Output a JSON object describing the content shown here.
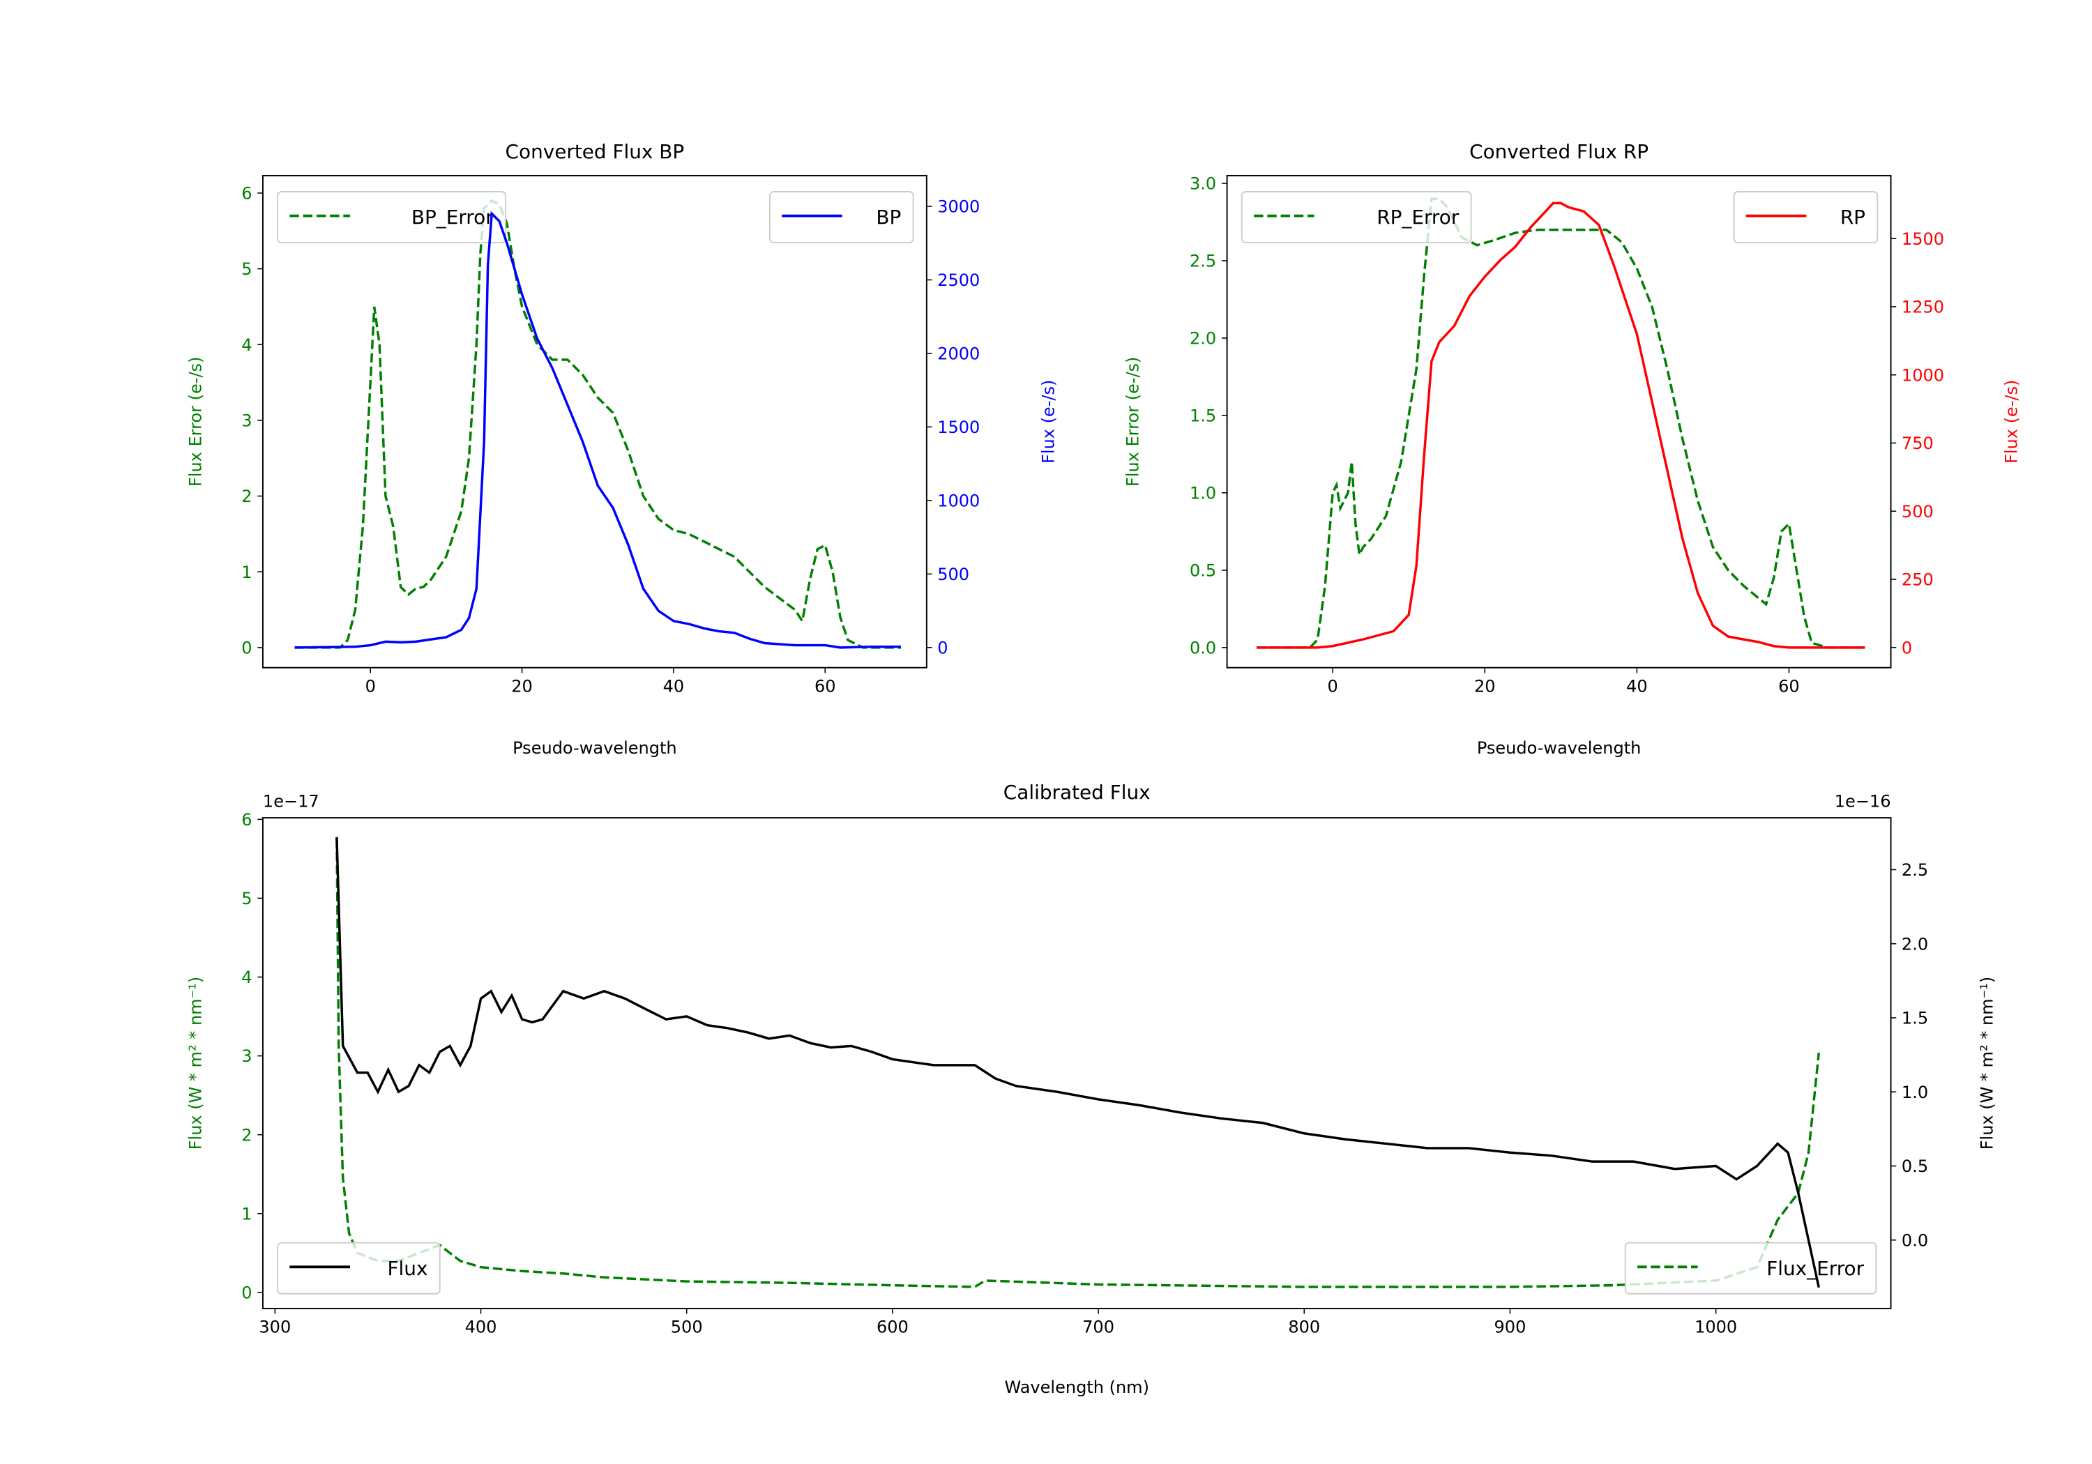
{
  "colors": {
    "green": "#008000",
    "blue": "#0000ff",
    "red": "#ff0000",
    "black": "#000000"
  },
  "chart_data": [
    {
      "id": "bp",
      "type": "line",
      "title": "Converted Flux BP",
      "xlabel": "Pseudo-wavelength",
      "ylabel_left": "Flux Error (e-/s)",
      "ylabel_right": "Flux (e-/s)",
      "xlim": [
        -14.2,
        73.4
      ],
      "ylim_left": [
        -0.265,
        6.23
      ],
      "ylim_right": [
        -137,
        3209
      ],
      "xticks": [
        0,
        20,
        40,
        60
      ],
      "yticks_left": [
        0,
        1,
        2,
        3,
        4,
        5,
        6
      ],
      "yticks_right": [
        0,
        500,
        1000,
        1500,
        2000,
        2500,
        3000
      ],
      "left_color": "#008000",
      "right_color": "#0000ff",
      "legend_left": {
        "label": "BP_Error",
        "placement": "upper-left"
      },
      "legend_right": {
        "label": "BP",
        "placement": "upper-right"
      },
      "series_left": {
        "name": "BP_Error",
        "style": "dashed",
        "x": [
          -10,
          -4,
          -3,
          -2,
          -1,
          0,
          0.5,
          1.2,
          2,
          3,
          4,
          5,
          6,
          7,
          8,
          10,
          12,
          13,
          14,
          14.5,
          15,
          16,
          17,
          18,
          19,
          20,
          22,
          24,
          26,
          28,
          30,
          32,
          34,
          36,
          38,
          40,
          42,
          44,
          46,
          48,
          50,
          52,
          54,
          56,
          57,
          58,
          59,
          60,
          61,
          62,
          63,
          65,
          70
        ],
        "y": [
          0,
          0,
          0.1,
          0.5,
          1.6,
          3.5,
          4.5,
          4.0,
          2.0,
          1.6,
          0.8,
          0.7,
          0.78,
          0.8,
          0.9,
          1.2,
          1.8,
          2.5,
          4,
          5.2,
          5.8,
          5.9,
          5.85,
          5.6,
          5.0,
          4.5,
          4.0,
          3.8,
          3.8,
          3.6,
          3.3,
          3.1,
          2.6,
          2.0,
          1.7,
          1.55,
          1.5,
          1.4,
          1.3,
          1.2,
          1.0,
          0.8,
          0.65,
          0.5,
          0.35,
          0.9,
          1.3,
          1.35,
          1.0,
          0.4,
          0.1,
          0,
          0
        ]
      },
      "series_right": {
        "name": "BP",
        "style": "solid",
        "x": [
          -10,
          -2,
          0,
          2,
          4,
          6,
          8,
          10,
          12,
          13,
          14,
          15,
          15.5,
          16,
          17,
          18,
          20,
          22,
          24,
          26,
          28,
          30,
          32,
          34,
          36,
          38,
          40,
          42,
          44,
          46,
          48,
          50,
          52,
          56,
          60,
          62,
          66,
          70
        ],
        "y": [
          0,
          5,
          15,
          40,
          35,
          40,
          55,
          70,
          120,
          200,
          400,
          1400,
          2600,
          2950,
          2900,
          2750,
          2400,
          2100,
          1900,
          1650,
          1400,
          1100,
          950,
          700,
          400,
          250,
          180,
          160,
          130,
          110,
          100,
          60,
          30,
          15,
          15,
          0,
          5,
          5
        ]
      }
    },
    {
      "id": "rp",
      "type": "line",
      "title": "Converted Flux RP",
      "xlabel": "Pseudo-wavelength",
      "ylabel_left": "Flux Error (e-/s)",
      "ylabel_right": "Flux (e-/s)",
      "xlim": [
        -13.9,
        73.4
      ],
      "ylim_left": [
        -0.13,
        3.05
      ],
      "ylim_right": [
        -74,
        1731
      ],
      "xticks": [
        0,
        20,
        40,
        60
      ],
      "yticks_left": [
        "0.0",
        "0.5",
        "1.0",
        "1.5",
        "2.0",
        "2.5",
        "3.0"
      ],
      "yticks_right": [
        0,
        250,
        500,
        750,
        1000,
        1250,
        1500
      ],
      "left_color": "#008000",
      "right_color": "#ff0000",
      "legend_left": {
        "label": "RP_Error",
        "placement": "upper-left"
      },
      "legend_right": {
        "label": "RP",
        "placement": "upper-right"
      },
      "series_left": {
        "name": "RP_Error",
        "style": "dashed",
        "x": [
          -10,
          -3,
          -2,
          -1,
          0,
          0.5,
          1,
          2,
          2.5,
          3,
          3.5,
          4,
          5,
          7,
          9,
          11,
          12,
          13,
          14,
          15,
          17,
          19,
          21,
          24,
          27,
          30,
          33,
          36,
          38,
          40,
          42,
          44,
          46,
          48,
          50,
          52,
          54,
          56,
          57,
          58,
          59,
          60,
          61,
          62,
          63,
          65,
          70
        ],
        "y": [
          0,
          0,
          0.05,
          0.4,
          1.0,
          1.05,
          0.9,
          1.0,
          1.2,
          0.8,
          0.6,
          0.65,
          0.7,
          0.85,
          1.2,
          1.8,
          2.4,
          2.9,
          2.9,
          2.85,
          2.65,
          2.6,
          2.63,
          2.68,
          2.7,
          2.7,
          2.7,
          2.7,
          2.62,
          2.45,
          2.2,
          1.8,
          1.35,
          0.95,
          0.65,
          0.5,
          0.4,
          0.32,
          0.28,
          0.45,
          0.75,
          0.8,
          0.5,
          0.2,
          0.03,
          0,
          0
        ]
      },
      "series_right": {
        "name": "RP",
        "style": "solid",
        "x": [
          -10,
          -2,
          0,
          4,
          8,
          10,
          11,
          12,
          13,
          14,
          16,
          18,
          20,
          22,
          24,
          26,
          28,
          29,
          30,
          31,
          33,
          35,
          37,
          40,
          42,
          44,
          46,
          48,
          50,
          52,
          54,
          56,
          58,
          60,
          70
        ],
        "y": [
          0,
          0,
          5,
          30,
          60,
          120,
          300,
          700,
          1050,
          1120,
          1180,
          1290,
          1360,
          1420,
          1470,
          1540,
          1600,
          1630,
          1630,
          1615,
          1600,
          1550,
          1400,
          1150,
          900,
          650,
          400,
          200,
          80,
          40,
          30,
          20,
          5,
          0,
          0
        ]
      }
    },
    {
      "id": "cal",
      "type": "line",
      "title": "Calibrated Flux",
      "xlabel": "Wavelength (nm)",
      "ylabel_left": "Flux (W * m² * nm⁻¹)",
      "ylabel_right": "Flux (W * m² * nm⁻¹)",
      "offset_left": "1e−17",
      "offset_right": "1e−16",
      "xlim": [
        294.1,
        1085
      ],
      "ylim_left": [
        -0.204,
        6.02
      ],
      "ylim_right": [
        -0.462,
        2.85
      ],
      "xticks": [
        300,
        400,
        500,
        600,
        700,
        800,
        900,
        1000
      ],
      "yticks_left": [
        0,
        1,
        2,
        3,
        4,
        5,
        6
      ],
      "yticks_right": [
        "0.0",
        "0.5",
        "1.0",
        "1.5",
        "2.0",
        "2.5"
      ],
      "left_color": "#008000",
      "right_color": "#000000",
      "legend_left": {
        "label": "Flux_Error",
        "placement": "lower-right"
      },
      "legend_right": {
        "label": "Flux",
        "placement": "lower-left"
      },
      "series_left": {
        "name": "Flux_Error",
        "style": "dashed",
        "x": [
          330,
          331,
          333,
          336,
          340,
          350,
          360,
          370,
          380,
          385,
          390,
          400,
          420,
          440,
          460,
          500,
          550,
          600,
          640,
          645,
          700,
          800,
          900,
          950,
          1000,
          1020,
          1030,
          1040,
          1045,
          1050
        ],
        "y": [
          5.76,
          3.1,
          1.45,
          0.75,
          0.5,
          0.4,
          0.4,
          0.5,
          0.6,
          0.5,
          0.4,
          0.32,
          0.27,
          0.24,
          0.19,
          0.14,
          0.12,
          0.09,
          0.07,
          0.15,
          0.1,
          0.07,
          0.07,
          0.09,
          0.15,
          0.32,
          0.92,
          1.26,
          1.77,
          3.04
        ]
      },
      "series_right": {
        "name": "Flux",
        "style": "solid",
        "x": [
          330,
          333,
          340,
          345,
          350,
          355,
          360,
          365,
          370,
          375,
          380,
          385,
          390,
          395,
          400,
          405,
          410,
          415,
          420,
          425,
          430,
          440,
          450,
          460,
          470,
          480,
          490,
          500,
          510,
          520,
          530,
          540,
          550,
          560,
          570,
          580,
          590,
          600,
          620,
          640,
          650,
          660,
          680,
          700,
          720,
          740,
          760,
          780,
          800,
          820,
          840,
          860,
          880,
          900,
          920,
          940,
          960,
          980,
          1000,
          1010,
          1020,
          1030,
          1035,
          1040,
          1050
        ],
        "y": [
          2.72,
          1.31,
          1.13,
          1.13,
          1.0,
          1.15,
          1.0,
          1.04,
          1.18,
          1.13,
          1.27,
          1.31,
          1.18,
          1.31,
          1.63,
          1.68,
          1.54,
          1.65,
          1.49,
          1.47,
          1.49,
          1.68,
          1.63,
          1.68,
          1.63,
          1.56,
          1.49,
          1.51,
          1.45,
          1.43,
          1.4,
          1.36,
          1.38,
          1.33,
          1.3,
          1.31,
          1.27,
          1.22,
          1.18,
          1.18,
          1.09,
          1.04,
          1.0,
          0.95,
          0.91,
          0.86,
          0.82,
          0.79,
          0.72,
          0.68,
          0.65,
          0.62,
          0.62,
          0.59,
          0.57,
          0.53,
          0.53,
          0.48,
          0.5,
          0.41,
          0.5,
          0.65,
          0.59,
          0.32,
          -0.32
        ]
      }
    }
  ]
}
